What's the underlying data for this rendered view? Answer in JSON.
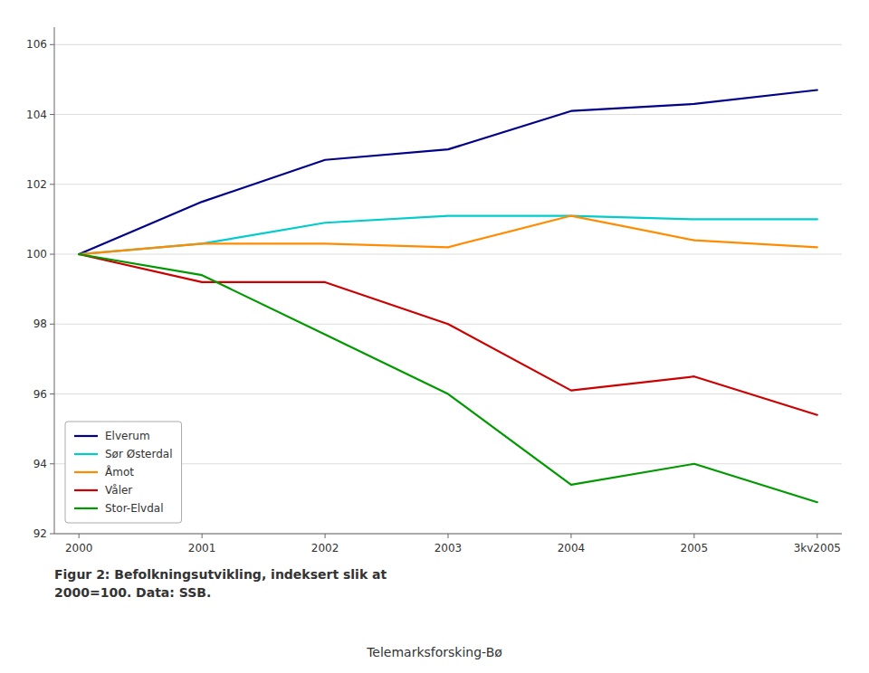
{
  "chart_data": {
    "type": "line",
    "categories": [
      "2000",
      "2001",
      "2002",
      "2003",
      "2004",
      "2005",
      "3kv2005"
    ],
    "series": [
      {
        "name": "Elverum",
        "color": "#00008B",
        "values": [
          100.0,
          101.5,
          102.7,
          103.0,
          104.1,
          104.3,
          104.7
        ]
      },
      {
        "name": "Sør Østerdal",
        "color": "#00CCCC",
        "values": [
          100.0,
          100.3,
          100.9,
          101.1,
          101.1,
          101.0,
          101.0
        ]
      },
      {
        "name": "Åmot",
        "color": "#FF8C00",
        "values": [
          100.0,
          100.3,
          100.3,
          100.2,
          101.1,
          100.4,
          100.2
        ]
      },
      {
        "name": "Våler",
        "color": "#CC0000",
        "values": [
          100.0,
          99.2,
          99.2,
          98.0,
          96.1,
          96.5,
          95.4
        ]
      },
      {
        "name": "Stor-Elvdal",
        "color": "#009900",
        "values": [
          100.0,
          99.4,
          97.7,
          96.0,
          93.4,
          94.0,
          92.9
        ]
      }
    ],
    "ylim": [
      92,
      106.5
    ],
    "yticks": [
      92,
      94,
      96,
      98,
      100,
      102,
      104,
      106
    ],
    "grid": true,
    "legend": "lower left",
    "annotations": [
      "Figur 2: Befolkningsutvikling, indeksert slik at",
      "2000=100.  Data: SSB.",
      "Telemarksforsking-Bø"
    ]
  }
}
